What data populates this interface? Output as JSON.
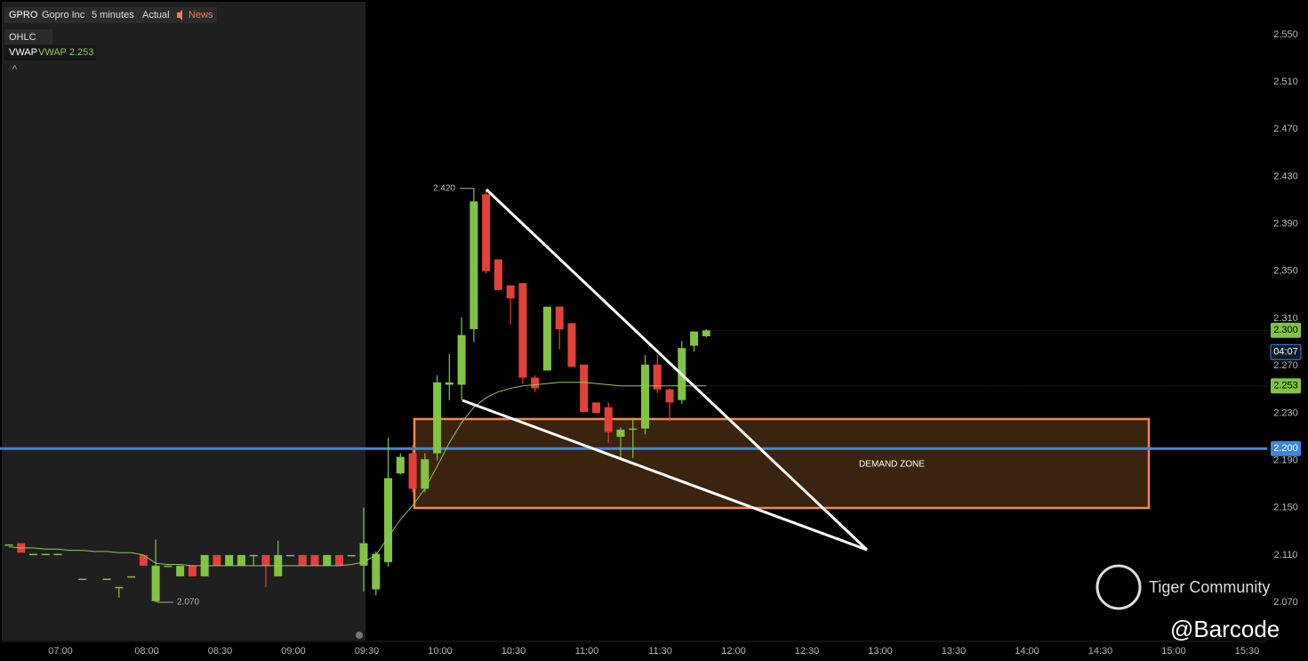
{
  "header": {
    "symbol": "GPRO",
    "name": "Gopro Inc",
    "interval": "5 minutes",
    "mode": "Actual",
    "news": "News"
  },
  "legend": {
    "ohlc": "OHLC",
    "vwap_label": "VWAP",
    "vwap_text": "VWAP 2.253"
  },
  "chart_data": {
    "type": "candlestick",
    "up_color": "#82c341",
    "down_color": "#e2403a",
    "ylim": [
      2.0377,
      2.5793
    ],
    "yticks": [
      {
        "value": 2.07,
        "label": "2.070"
      },
      {
        "value": 2.11,
        "label": "2.110"
      },
      {
        "value": 2.15,
        "label": "2.150"
      },
      {
        "value": 2.19,
        "label": "2.190"
      },
      {
        "value": 2.23,
        "label": "2.230"
      },
      {
        "value": 2.27,
        "label": "2.270"
      },
      {
        "value": 2.31,
        "label": "2.310"
      },
      {
        "value": 2.35,
        "label": "2.350"
      },
      {
        "value": 2.39,
        "label": "2.390"
      },
      {
        "value": 2.43,
        "label": "2.430"
      },
      {
        "value": 2.47,
        "label": "2.470"
      },
      {
        "value": 2.51,
        "label": "2.510"
      },
      {
        "value": 2.55,
        "label": "2.550"
      }
    ],
    "x_labels": [
      "07:00",
      "08:00",
      "08:30",
      "09:00",
      "09:30",
      "10:00",
      "10:30",
      "11:00",
      "11:30",
      "12:00",
      "12:30",
      "13:00",
      "13:30",
      "14:00",
      "14:30",
      "15:00",
      "15:30"
    ],
    "open": [
      2.119,
      2.12,
      2.111,
      2.111,
      2.111,
      null,
      2.09,
      null,
      2.09,
      2.083,
      2.092,
      2.11,
      2.071,
      2.101,
      2.092,
      2.101,
      2.092,
      2.11,
      2.101,
      2.101,
      2.11,
      2.11,
      2.092,
      2.11,
      2.11,
      2.11,
      2.101,
      2.11,
      2.11,
      2.101,
      2.081,
      2.104,
      2.179,
      2.196,
      2.166,
      2.196,
      2.254,
      2.254,
      2.301,
      2.415,
      2.36,
      2.338,
      2.34,
      2.26,
      2.266,
      2.32,
      2.306,
      2.271,
      2.239,
      2.235,
      2.21,
      2.216,
      2.217,
      2.271,
      2.25,
      2.241,
      2.287,
      2.295
    ],
    "high": [
      2.119,
      2.12,
      2.111,
      2.111,
      2.111,
      null,
      2.09,
      null,
      2.09,
      2.083,
      2.092,
      2.11,
      2.123,
      2.101,
      2.101,
      2.101,
      2.11,
      2.11,
      2.11,
      2.11,
      2.11,
      2.11,
      2.122,
      2.11,
      2.11,
      2.11,
      2.11,
      2.11,
      2.11,
      2.15,
      2.113,
      2.209,
      2.196,
      2.203,
      2.196,
      2.262,
      2.28,
      2.311,
      2.42,
      2.418,
      2.36,
      2.338,
      2.34,
      2.262,
      2.32,
      2.32,
      2.306,
      2.271,
      2.239,
      2.239,
      2.218,
      2.226,
      2.279,
      2.279,
      2.251,
      2.291,
      2.299,
      2.301
    ],
    "low": [
      2.119,
      2.112,
      2.111,
      2.111,
      2.111,
      null,
      2.09,
      null,
      2.09,
      2.074,
      2.092,
      2.101,
      2.07,
      2.101,
      2.092,
      2.092,
      2.092,
      2.101,
      2.101,
      2.101,
      2.101,
      2.083,
      2.092,
      2.11,
      2.101,
      2.101,
      2.101,
      2.101,
      2.11,
      2.079,
      2.076,
      2.1,
      2.178,
      2.163,
      2.163,
      2.19,
      2.241,
      2.241,
      2.29,
      2.348,
      2.334,
      2.305,
      2.255,
      2.248,
      2.266,
      2.284,
      2.269,
      2.231,
      2.23,
      2.205,
      2.192,
      2.192,
      2.212,
      2.247,
      2.223,
      2.238,
      2.282,
      2.294
    ],
    "close": [
      2.119,
      2.112,
      2.111,
      2.111,
      2.111,
      null,
      2.09,
      null,
      2.09,
      2.083,
      2.092,
      2.101,
      2.101,
      2.101,
      2.101,
      2.092,
      2.11,
      2.101,
      2.11,
      2.11,
      2.11,
      2.101,
      2.11,
      2.11,
      2.101,
      2.101,
      2.11,
      2.101,
      2.11,
      2.12,
      2.111,
      2.175,
      2.193,
      2.166,
      2.191,
      2.256,
      2.256,
      2.296,
      2.409,
      2.35,
      2.334,
      2.327,
      2.26,
      2.251,
      2.32,
      2.301,
      2.269,
      2.231,
      2.23,
      2.214,
      2.216,
      2.217,
      2.271,
      2.25,
      2.239,
      2.285,
      2.299,
      2.3
    ],
    "vwap": {
      "name": "VWAP",
      "color": "#8fc760",
      "values": [
        2.117,
        2.116,
        2.116,
        2.115,
        2.115,
        2.114,
        2.114,
        2.113,
        2.113,
        2.112,
        2.112,
        2.11,
        2.103,
        2.102,
        2.102,
        2.101,
        2.101,
        2.101,
        2.101,
        2.101,
        2.101,
        2.101,
        2.101,
        2.101,
        2.101,
        2.101,
        2.101,
        2.101,
        2.102,
        2.104,
        2.11,
        2.125,
        2.14,
        2.152,
        2.166,
        2.185,
        2.205,
        2.222,
        2.235,
        2.243,
        2.248,
        2.251,
        2.253,
        2.254,
        2.255,
        2.256,
        2.256,
        2.256,
        2.255,
        2.254,
        2.253,
        2.253,
        2.253,
        2.253,
        2.253,
        2.253,
        2.253,
        2.253
      ]
    },
    "high_marker": {
      "value": 2.42,
      "label": "2.420"
    },
    "low_marker": {
      "value": 2.07,
      "label": "2.070"
    },
    "hline": {
      "value": 2.2,
      "label": "2.200",
      "color": "#3f86dc"
    },
    "last_price": {
      "value": 2.3,
      "label": "2.300"
    },
    "countdown": "04:07",
    "vwap_tag": {
      "value": 2.253,
      "label": "2.253"
    },
    "zone_label": "DEMAND ZONE"
  },
  "watermark": {
    "brand": "Tiger Community",
    "user": "@Barcode"
  }
}
